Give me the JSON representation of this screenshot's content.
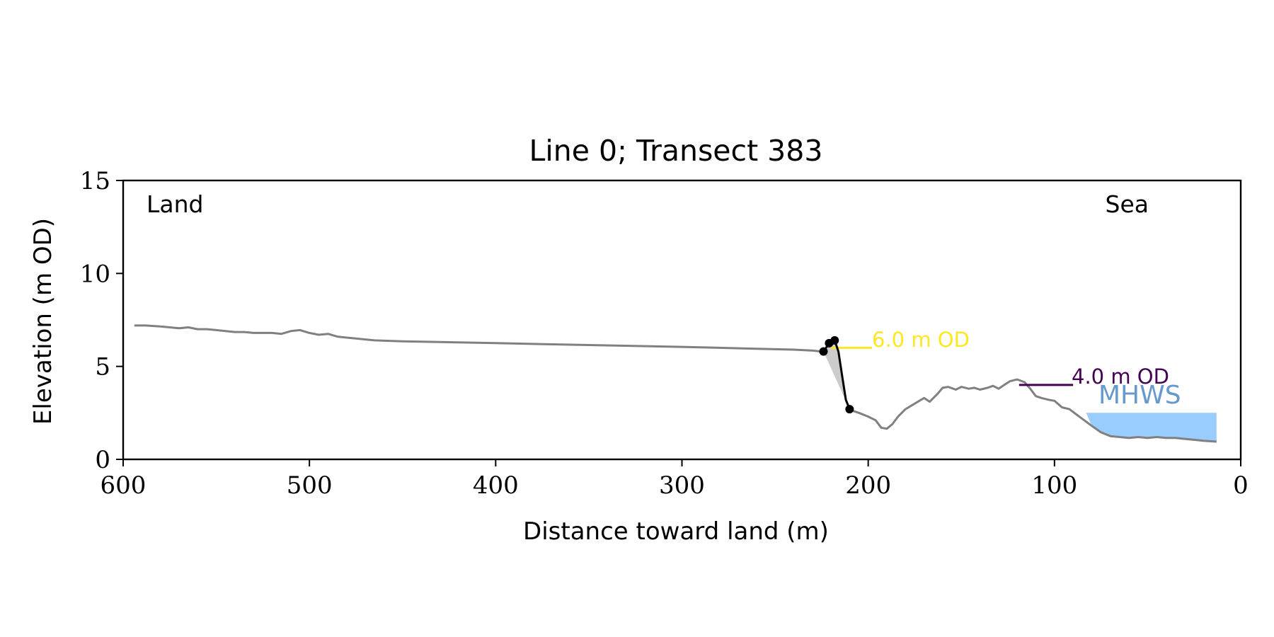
{
  "chart_data": {
    "type": "line",
    "title": "Line 0; Transect 383",
    "xlabel": "Distance toward land (m)",
    "ylabel": "Elevation (m OD)",
    "xlim": [
      600,
      0
    ],
    "ylim": [
      0,
      15
    ],
    "x_ticks": [
      600,
      500,
      400,
      300,
      200,
      100,
      0
    ],
    "y_ticks": [
      0,
      5,
      10,
      15
    ],
    "grid": false,
    "region_labels": {
      "left": "Land",
      "right": "Sea"
    },
    "profile": {
      "color": "#808080",
      "x": [
        594,
        588,
        580,
        575,
        570,
        565,
        560,
        555,
        550,
        545,
        540,
        535,
        530,
        525,
        520,
        515,
        510,
        505,
        500,
        495,
        490,
        485,
        480,
        475,
        470,
        465,
        450,
        400,
        350,
        300,
        260,
        240,
        230,
        225
      ],
      "y": [
        7.2,
        7.2,
        7.15,
        7.1,
        7.05,
        7.1,
        7.0,
        7.0,
        6.95,
        6.9,
        6.85,
        6.85,
        6.8,
        6.8,
        6.8,
        6.75,
        6.9,
        6.95,
        6.8,
        6.7,
        6.75,
        6.6,
        6.55,
        6.5,
        6.45,
        6.4,
        6.35,
        6.25,
        6.15,
        6.05,
        5.95,
        5.9,
        5.85,
        5.8
      ]
    },
    "profile_seaward": {
      "color": "#808080",
      "x": [
        211,
        205,
        200,
        196,
        193,
        190,
        187,
        184,
        180,
        175,
        170,
        167,
        163,
        160,
        157,
        153,
        150,
        146,
        143,
        140,
        136,
        133,
        130,
        127,
        124,
        120,
        116,
        113,
        110,
        107,
        103,
        100,
        96,
        92,
        88,
        84,
        80,
        75,
        70,
        65,
        60,
        55,
        50,
        45,
        40,
        35,
        30,
        25,
        20,
        13
      ],
      "y": [
        2.7,
        2.5,
        2.3,
        2.1,
        1.7,
        1.65,
        1.9,
        2.3,
        2.7,
        3.0,
        3.3,
        3.1,
        3.5,
        3.85,
        3.9,
        3.75,
        3.9,
        3.8,
        3.85,
        3.75,
        3.85,
        3.95,
        3.8,
        4.0,
        4.2,
        4.3,
        4.15,
        3.8,
        3.4,
        3.3,
        3.2,
        3.15,
        2.8,
        2.7,
        2.4,
        2.1,
        1.8,
        1.45,
        1.25,
        1.2,
        1.15,
        1.2,
        1.15,
        1.2,
        1.15,
        1.15,
        1.1,
        1.05,
        1.0,
        0.95
      ]
    },
    "cliff_edge": {
      "color": "#000000",
      "x": [
        224,
        221,
        218,
        216,
        214,
        212,
        210
      ],
      "y": [
        5.8,
        6.25,
        6.4,
        5.8,
        4.5,
        3.2,
        2.7
      ]
    },
    "cliff_points": {
      "color": "#000000",
      "x": [
        224,
        221,
        218,
        210
      ],
      "y": [
        5.8,
        6.25,
        6.4,
        2.7
      ]
    },
    "cliff_fill": {
      "color": "#cccccc"
    },
    "contours": [
      {
        "label": "6.0 m OD",
        "color": "#FDE725",
        "x": [
          220,
          198
        ],
        "y": 6.0
      },
      {
        "label": "4.0 m OD",
        "color": "#440154",
        "x": [
          119,
          90
        ],
        "y": 4.0
      }
    ],
    "mhws": {
      "label": "MHWS",
      "fill_color": "#99CCFF",
      "label_color": "#6699CC",
      "level": 2.5,
      "x_from": 83,
      "x_to": 13
    }
  }
}
